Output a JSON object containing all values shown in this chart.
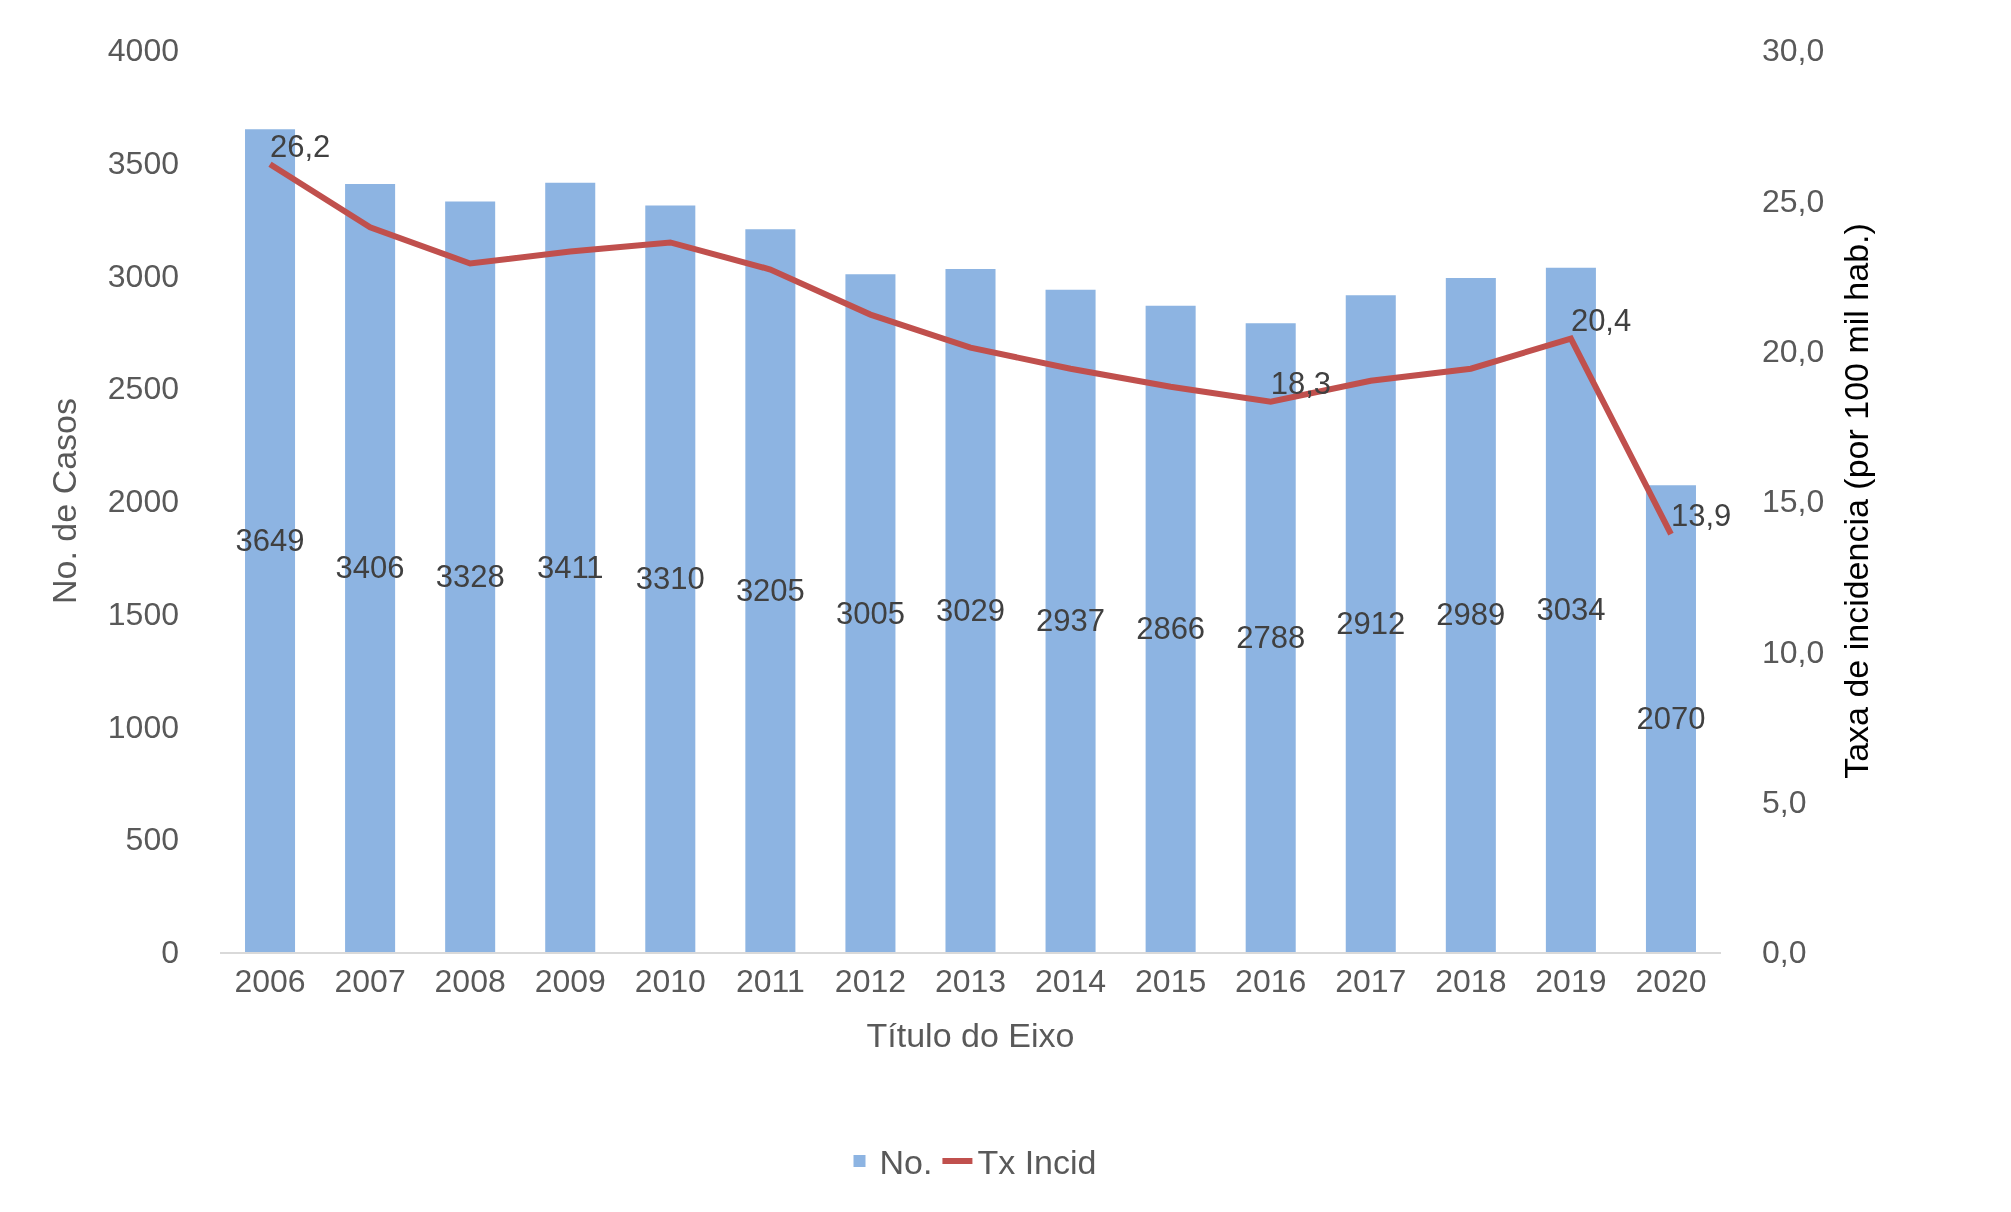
{
  "chart_data": {
    "type": "bar",
    "xlabel": "Título do Eixo",
    "ylabel": "No. de Casos",
    "y2label": "Taxa de incidencia (por 100 mil hab.)",
    "categories": [
      "2006",
      "2007",
      "2008",
      "2009",
      "2010",
      "2011",
      "2012",
      "2013",
      "2014",
      "2015",
      "2016",
      "2017",
      "2018",
      "2019",
      "2020"
    ],
    "series": [
      {
        "name": "No.",
        "color": "#8db4e2",
        "data_labels": true,
        "values": [
          3649,
          3406,
          3328,
          3411,
          3310,
          3205,
          3005,
          3029,
          2937,
          2866,
          2788,
          2912,
          2989,
          3034,
          2070
        ]
      },
      {
        "name": "Tx Incid",
        "type": "line",
        "axis": "y2",
        "color": "#c0504d",
        "marker": "none",
        "line_style": "solid",
        "values": [
          26.2,
          24.1,
          22.9,
          23.3,
          23.6,
          22.7,
          21.2,
          20.1,
          19.4,
          18.8,
          18.3,
          19.0,
          19.4,
          20.4,
          13.9
        ],
        "value_labels": [
          "26,2",
          null,
          null,
          null,
          null,
          null,
          null,
          null,
          null,
          null,
          "18,3",
          null,
          null,
          "20,4",
          "13,9"
        ]
      }
    ],
    "ylim": [
      0,
      4000
    ],
    "yticks": [
      0,
      500,
      1000,
      1500,
      2000,
      2500,
      3000,
      3500,
      4000
    ],
    "y2lim": [
      0,
      30
    ],
    "y2ticks": [
      {
        "value": 0,
        "label": "0,0"
      },
      {
        "value": 5,
        "label": "5,0"
      },
      {
        "value": 10,
        "label": "10,0"
      },
      {
        "value": 15,
        "label": "15,0"
      },
      {
        "value": 20,
        "label": "20,0"
      },
      {
        "value": 25,
        "label": "25,0"
      },
      {
        "value": 30,
        "label": "30,0"
      }
    ],
    "grid": false,
    "legend": "bottom"
  }
}
